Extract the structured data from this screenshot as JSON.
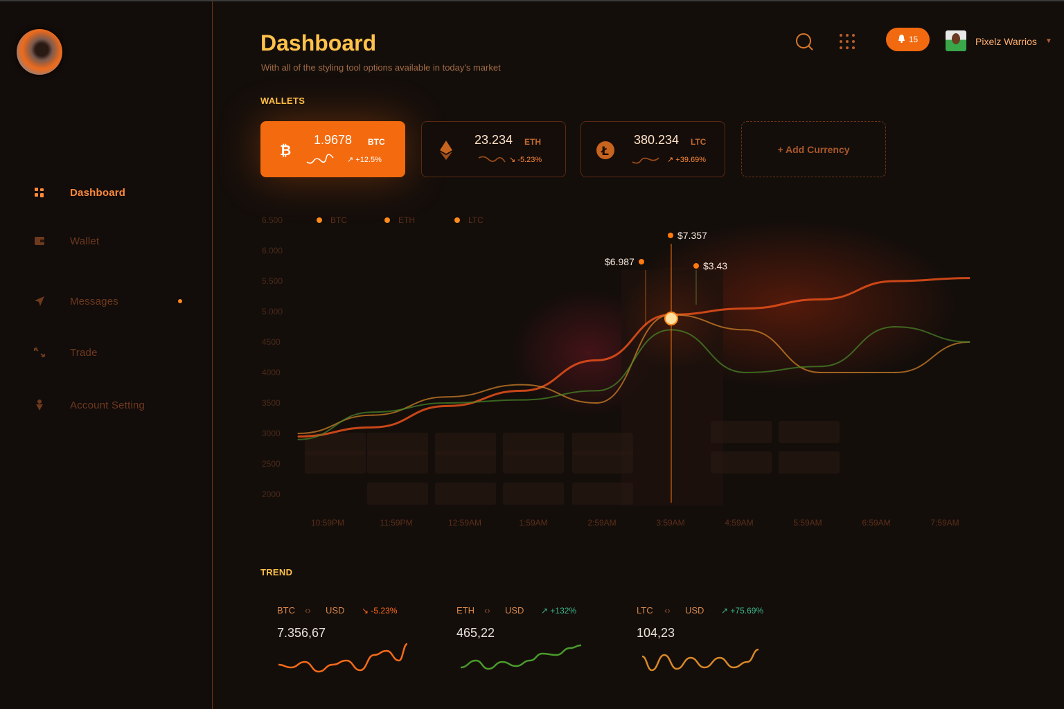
{
  "header": {
    "title": "Dashboard",
    "subtitle": "With all of the styling tool options available in today's market",
    "notifications": "15",
    "user_name": "Pixelz Warrios"
  },
  "sidebar": {
    "items": [
      {
        "label": "Dashboard",
        "icon": "dashboard-icon",
        "active": true
      },
      {
        "label": "Wallet",
        "icon": "wallet-icon"
      },
      {
        "label": "Messages",
        "icon": "send-icon",
        "badge_dot": true
      },
      {
        "label": "Trade",
        "icon": "trade-arrows-icon"
      },
      {
        "label": "Account Setting",
        "icon": "person-icon"
      }
    ]
  },
  "wallets": {
    "label": "WALLETS",
    "cards": [
      {
        "value": "1.9678",
        "unit": "BTC",
        "change": "+12.5%",
        "icon": "bitcoin-icon"
      },
      {
        "value": "23.234",
        "unit": "ETH",
        "change": "-5.23%",
        "icon": "ethereum-icon"
      },
      {
        "value": "380.234",
        "unit": "LTC",
        "change": "+39.69%",
        "icon": "litecoin-icon"
      }
    ],
    "add_label": "+ Add Currency"
  },
  "chart_data": {
    "type": "line",
    "legend": [
      "BTC",
      "ETH",
      "LTC"
    ],
    "y_ticks": [
      "6.500",
      "6.000",
      "5.500",
      "5.000",
      "4500",
      "4000",
      "3500",
      "3000",
      "2500",
      "2000"
    ],
    "ylim": [
      2000,
      6500
    ],
    "x_ticks": [
      "10:59PM",
      "11:59PM",
      "12:59AM",
      "1:59AM",
      "2:59AM",
      "3:59AM",
      "4:59AM",
      "5:59AM",
      "6:59AM",
      "7:59AM"
    ],
    "series": [
      {
        "name": "BTC",
        "color": "#e8501a",
        "values": [
          2950,
          3100,
          3450,
          3700,
          4200,
          4950,
          5050,
          5200,
          5500,
          5550
        ]
      },
      {
        "name": "ETH",
        "color": "#d8882a",
        "values": [
          3000,
          3300,
          3600,
          3800,
          3500,
          4950,
          4700,
          4000,
          4000,
          4500
        ]
      },
      {
        "name": "LTC",
        "color": "#4a8a2a",
        "values": [
          2900,
          3350,
          3500,
          3550,
          3700,
          4700,
          4000,
          4100,
          4750,
          4500
        ]
      }
    ],
    "tooltips": [
      "$6.987",
      "$7.357",
      "$3.43"
    ],
    "highlight_x": "3:59AM"
  },
  "trend": {
    "label": "TREND",
    "items": [
      {
        "from": "BTC",
        "to": "USD",
        "change": "-5.23%",
        "value": "7.356,67",
        "change_color": "#ff6a1a",
        "line_color": "#f46a1a"
      },
      {
        "from": "ETH",
        "to": "USD",
        "change": "+132%",
        "value": "465,22",
        "change_color": "#3ab88a",
        "line_color": "#4a9a2a"
      },
      {
        "from": "LTC",
        "to": "USD",
        "change": "+75.69%",
        "value": "104,23",
        "change_color": "#3ab88a",
        "line_color": "#d8882a"
      }
    ]
  }
}
